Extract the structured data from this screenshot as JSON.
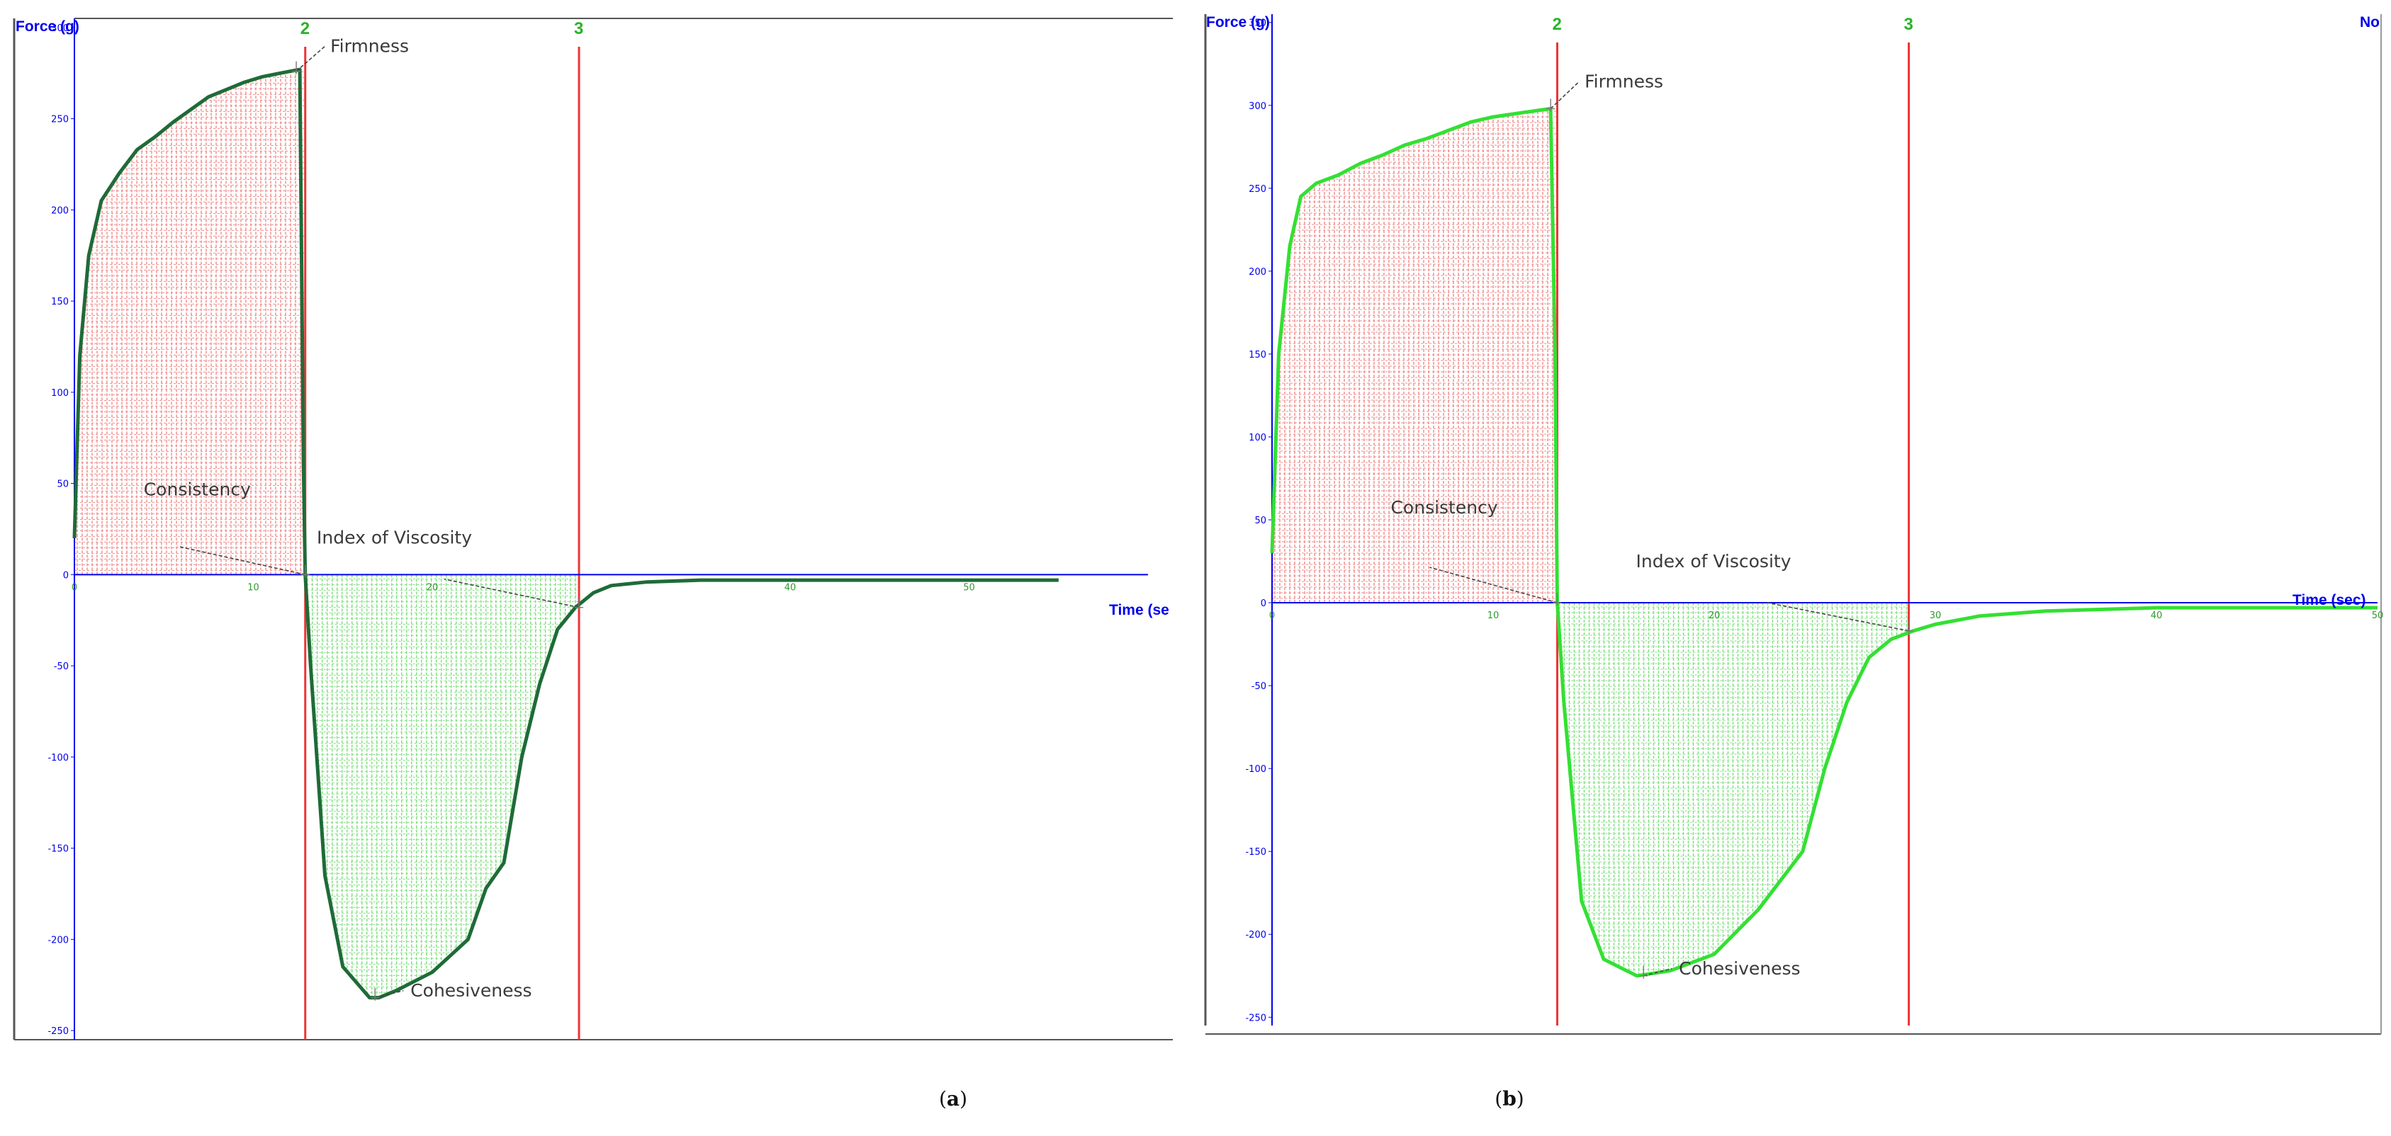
{
  "captions": {
    "a": {
      "open": "(",
      "letter": "a",
      "close": ")"
    },
    "b": {
      "open": "(",
      "letter": "b",
      "close": ")"
    }
  },
  "colors": {
    "axis": "#0000ee",
    "marker_line": "#ee3333",
    "marker_label": "#29b329",
    "positive_hatch": "#f08a8a",
    "negative_hatch": "#7ee07e",
    "curve_a": "#1f6b38",
    "curve_b": "#33e033",
    "annotation_text": "#3a3a3a"
  },
  "chart_data": [
    {
      "id": "a",
      "type": "line",
      "ylabel": "Force (g)",
      "xlabel": "Time (se",
      "corner_label": "",
      "yticks": [
        300,
        250,
        200,
        150,
        100,
        50,
        0,
        -50,
        -100,
        -150,
        -200,
        -250
      ],
      "ytick_labels": [
        "300",
        "250",
        "200",
        "150",
        "100",
        "50",
        "0",
        "-50",
        "-100",
        "-150",
        "-200",
        "-250"
      ],
      "xticks": [
        0,
        10,
        20,
        30,
        40,
        50
      ],
      "xtick_labels": [
        "0",
        "10",
        "20",
        "",
        "40",
        "50"
      ],
      "xlim": [
        0,
        60
      ],
      "ylim": [
        -255,
        305
      ],
      "markers": [
        {
          "label": "2",
          "x": 12.9
        },
        {
          "label": "3",
          "x": 28.2
        }
      ],
      "series": [
        {
          "x": [
            0,
            0.3,
            0.8,
            1.5,
            2.5,
            3.5,
            4.5,
            5.5,
            6.5,
            7.5,
            8.5,
            9.5,
            10.5,
            11.5,
            12.6,
            12.8,
            12.9,
            13.2,
            14,
            15,
            16.5,
            17,
            18,
            20,
            22,
            23,
            24,
            25,
            26,
            27,
            28,
            29,
            30,
            32,
            35,
            40,
            45,
            50,
            55
          ],
          "y": [
            20,
            120,
            175,
            205,
            220,
            233,
            240,
            248,
            255,
            262,
            266,
            270,
            273,
            275,
            277,
            60,
            0,
            -50,
            -165,
            -215,
            -232,
            -232,
            -228,
            -218,
            -200,
            -172,
            -158,
            -100,
            -60,
            -30,
            -18,
            -10,
            -6,
            -4,
            -3,
            -3,
            -3,
            -3,
            -3
          ]
        }
      ],
      "annotations": [
        {
          "label": "Firmness",
          "x": 12.4,
          "y": 276
        },
        {
          "label": "Consistency",
          "x": 12.9,
          "y": 0
        },
        {
          "label": "Index of Viscosity",
          "x": 28.2,
          "y": -18
        },
        {
          "label": "Cohesiveness",
          "x": 16.8,
          "y": -232
        }
      ]
    },
    {
      "id": "b",
      "type": "line",
      "ylabel": "Force (g)",
      "xlabel": "Time (sec)",
      "corner_label": "No",
      "yticks": [
        350,
        300,
        250,
        200,
        150,
        100,
        50,
        0,
        -50,
        -100,
        -150,
        -200,
        -250
      ],
      "ytick_labels": [
        "350",
        "300",
        "250",
        "200",
        "150",
        "100",
        "50",
        "0",
        "-50",
        "-100",
        "-150",
        "-200",
        "-250"
      ],
      "xticks": [
        0,
        10,
        20,
        30,
        40,
        50
      ],
      "xtick_labels": [
        "0",
        "10",
        "20",
        "30",
        "40",
        "50"
      ],
      "xlim": [
        0,
        50
      ],
      "ylim": [
        -255,
        355
      ],
      "markers": [
        {
          "label": "2",
          "x": 12.9
        },
        {
          "label": "3",
          "x": 28.8
        }
      ],
      "series": [
        {
          "x": [
            0,
            0.3,
            0.8,
            1.3,
            2,
            3,
            4,
            5,
            6,
            7,
            8,
            9,
            10,
            11,
            12.6,
            12.8,
            12.9,
            13.2,
            14,
            15,
            16.5,
            18,
            20,
            22,
            24,
            25,
            26,
            27,
            28,
            29,
            30,
            32,
            35,
            40,
            45,
            50
          ],
          "y": [
            30,
            150,
            215,
            245,
            253,
            258,
            265,
            270,
            276,
            280,
            285,
            290,
            293,
            295,
            298,
            150,
            0,
            -60,
            -180,
            -215,
            -225,
            -222,
            -212,
            -185,
            -150,
            -100,
            -60,
            -33,
            -22,
            -17,
            -13,
            -8,
            -5,
            -3,
            -3,
            -3
          ]
        }
      ],
      "annotations": [
        {
          "label": "Firmness",
          "x": 12.6,
          "y": 298
        },
        {
          "label": "Consistency",
          "x": 12.9,
          "y": 0
        },
        {
          "label": "Index of Viscosity",
          "x": 28.8,
          "y": -17
        },
        {
          "label": "Cohesiveness",
          "x": 16.8,
          "y": -225
        }
      ]
    }
  ]
}
